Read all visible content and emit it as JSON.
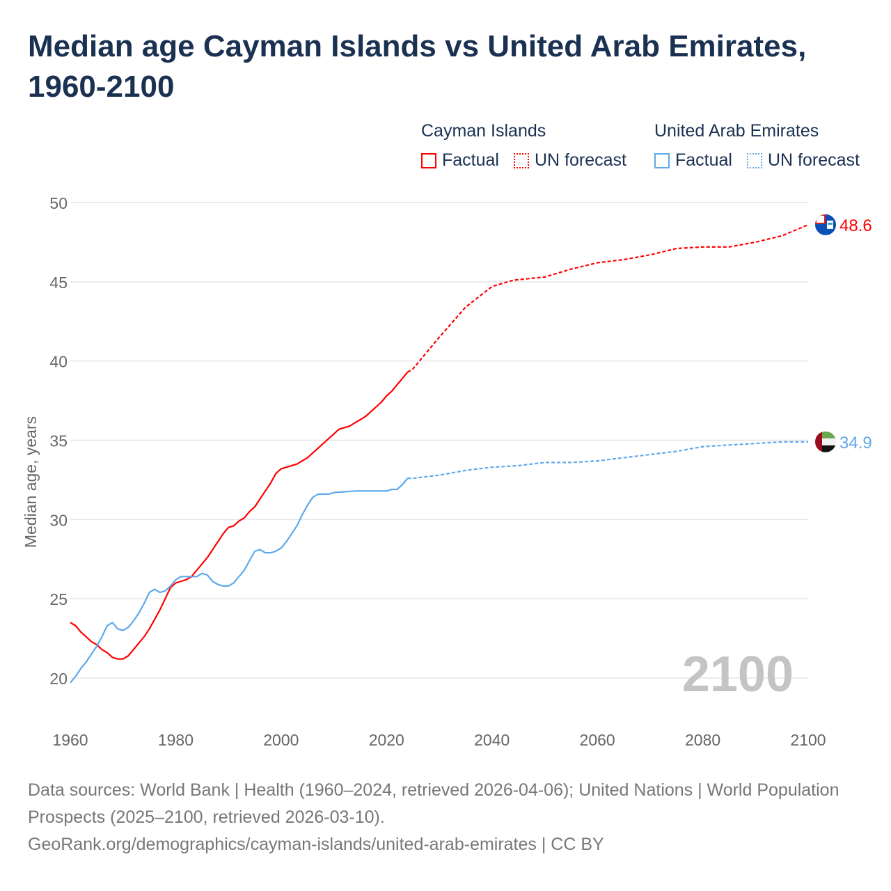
{
  "title": "Median age Cayman Islands vs United Arab Emirates, 1960-2100",
  "legend": {
    "groups": [
      {
        "name": "Cayman Islands",
        "factual": "Factual",
        "forecast": "UN forecast"
      },
      {
        "name": "United Arab Emirates",
        "factual": "Factual",
        "forecast": "UN forecast"
      }
    ]
  },
  "source": {
    "line1": "Data sources: World Bank | Health (1960–2024, retrieved 2026-04-06); United Nations | World Population Prospects (2025–2100, retrieved 2026-03-10).",
    "line2": "GeoRank.org/demographics/cayman-islands/united-arab-emirates | CC BY"
  },
  "chart_data": {
    "type": "line",
    "title": "Median age Cayman Islands vs United Arab Emirates, 1960-2100",
    "xlabel": "",
    "ylabel": "Median age, years",
    "xlim": [
      1960,
      2100
    ],
    "ylim": [
      20,
      50
    ],
    "xticks": [
      "1960",
      "1980",
      "2000",
      "2020",
      "2040",
      "2060",
      "2080",
      "2100"
    ],
    "yticks": [
      "20",
      "25",
      "30",
      "35",
      "40",
      "45",
      "50"
    ],
    "year_watermark": "2100",
    "grid": true,
    "legend_position": "top-right",
    "series": [
      {
        "name": "Cayman Islands",
        "color": "#ff0000",
        "end_label": "48.6",
        "flag": "cayman-islands-flag",
        "factual": {
          "x": [
            1960,
            1961,
            1962,
            1963,
            1964,
            1965,
            1966,
            1967,
            1968,
            1969,
            1970,
            1971,
            1972,
            1973,
            1974,
            1975,
            1976,
            1977,
            1978,
            1979,
            1980,
            1981,
            1982,
            1983,
            1984,
            1985,
            1986,
            1987,
            1988,
            1989,
            1990,
            1991,
            1992,
            1993,
            1994,
            1995,
            1996,
            1997,
            1998,
            1999,
            2000,
            2001,
            2002,
            2003,
            2004,
            2005,
            2006,
            2007,
            2008,
            2009,
            2010,
            2011,
            2012,
            2013,
            2014,
            2015,
            2016,
            2017,
            2018,
            2019,
            2020,
            2021,
            2022,
            2023,
            2024
          ],
          "y": [
            23.5,
            23.3,
            22.9,
            22.6,
            22.3,
            22.1,
            21.8,
            21.6,
            21.3,
            21.2,
            21.2,
            21.4,
            21.8,
            22.2,
            22.6,
            23.1,
            23.7,
            24.3,
            25.0,
            25.7,
            26.0,
            26.1,
            26.2,
            26.4,
            26.8,
            27.2,
            27.6,
            28.1,
            28.6,
            29.1,
            29.5,
            29.6,
            29.9,
            30.1,
            30.5,
            30.8,
            31.3,
            31.8,
            32.3,
            32.9,
            33.2,
            33.3,
            33.4,
            33.5,
            33.7,
            33.9,
            34.2,
            34.5,
            34.8,
            35.1,
            35.4,
            35.7,
            35.8,
            35.9,
            36.1,
            36.3,
            36.5,
            36.8,
            37.1,
            37.4,
            37.8,
            38.1,
            38.5,
            38.9,
            39.3
          ]
        },
        "forecast": {
          "x": [
            2024,
            2025,
            2030,
            2035,
            2040,
            2044,
            2050,
            2055,
            2060,
            2065,
            2070,
            2075,
            2080,
            2085,
            2090,
            2095,
            2100
          ],
          "y": [
            39.3,
            39.5,
            41.5,
            43.4,
            44.7,
            45.1,
            45.3,
            45.8,
            46.2,
            46.4,
            46.7,
            47.1,
            47.2,
            47.2,
            47.5,
            47.9,
            48.6
          ]
        }
      },
      {
        "name": "United Arab Emirates",
        "color": "#5ea8ec",
        "end_label": "34.9",
        "flag": "uae-flag",
        "factual": {
          "x": [
            1960,
            1961,
            1962,
            1963,
            1964,
            1965,
            1966,
            1967,
            1968,
            1969,
            1970,
            1971,
            1972,
            1973,
            1974,
            1975,
            1976,
            1977,
            1978,
            1979,
            1980,
            1981,
            1982,
            1983,
            1984,
            1985,
            1986,
            1987,
            1988,
            1989,
            1990,
            1991,
            1992,
            1993,
            1994,
            1995,
            1996,
            1997,
            1998,
            1999,
            2000,
            2001,
            2002,
            2003,
            2004,
            2005,
            2006,
            2007,
            2008,
            2009,
            2010,
            2014,
            2020,
            2021,
            2022,
            2023,
            2024
          ],
          "y": [
            19.7,
            20.1,
            20.6,
            21.0,
            21.5,
            22.0,
            22.6,
            23.3,
            23.5,
            23.1,
            23.0,
            23.2,
            23.6,
            24.1,
            24.7,
            25.4,
            25.6,
            25.4,
            25.5,
            25.8,
            26.2,
            26.4,
            26.4,
            26.4,
            26.4,
            26.6,
            26.5,
            26.1,
            25.9,
            25.8,
            25.8,
            26.0,
            26.4,
            26.8,
            27.4,
            28.0,
            28.1,
            27.9,
            27.9,
            28.0,
            28.2,
            28.6,
            29.1,
            29.6,
            30.3,
            30.9,
            31.4,
            31.6,
            31.6,
            31.6,
            31.7,
            31.8,
            31.8,
            31.9,
            31.9,
            32.2,
            32.6
          ]
        },
        "forecast": {
          "x": [
            2024,
            2025,
            2030,
            2035,
            2040,
            2045,
            2050,
            2055,
            2060,
            2065,
            2070,
            2075,
            2080,
            2085,
            2090,
            2095,
            2100
          ],
          "y": [
            32.6,
            32.6,
            32.8,
            33.1,
            33.3,
            33.4,
            33.6,
            33.6,
            33.7,
            33.9,
            34.1,
            34.3,
            34.6,
            34.7,
            34.8,
            34.9,
            34.9
          ]
        }
      }
    ]
  }
}
